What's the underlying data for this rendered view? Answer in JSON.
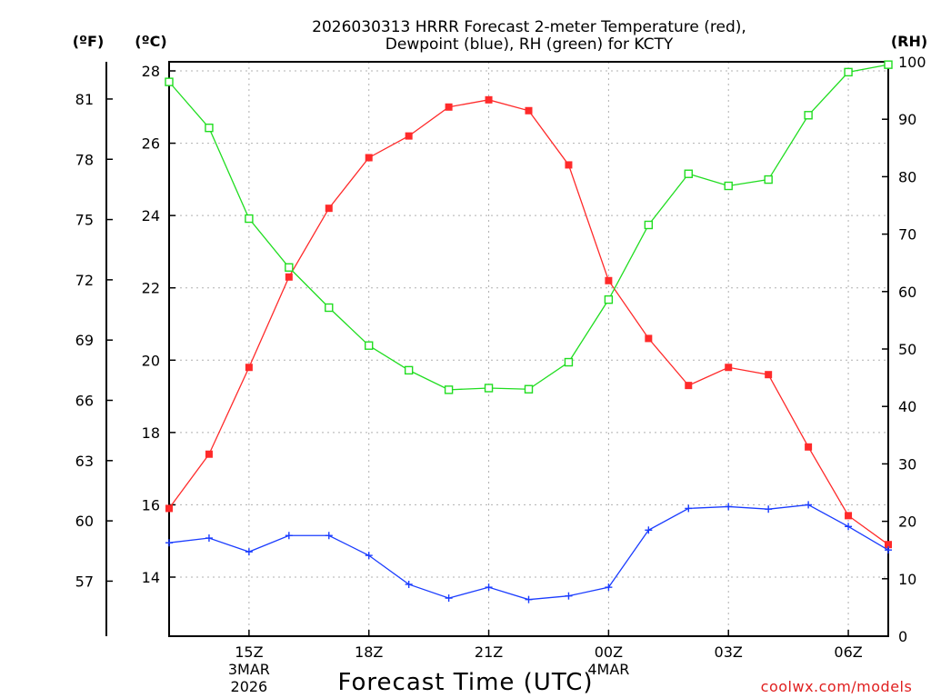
{
  "chart_data": {
    "type": "line",
    "title_line1": "2026030313 HRRR Forecast 2-meter Temperature (red),",
    "title_line2": "Dewpoint (blue), RH (green) for KCTY",
    "xlabel": "Forecast Time (UTC)",
    "credit": "coolwx.com/models",
    "units": {
      "f": "(ºF)",
      "c": "(ºC)",
      "rh": "(RH)"
    },
    "hours": [
      13,
      14,
      15,
      16,
      17,
      18,
      19,
      20,
      21,
      22,
      23,
      24,
      25,
      26,
      27,
      28,
      29,
      30,
      31
    ],
    "xlim": [
      13,
      31
    ],
    "x_ticks": [
      {
        "hour": 15,
        "label": "15Z",
        "sub1": "3MAR",
        "sub2": "2026"
      },
      {
        "hour": 18,
        "label": "18Z",
        "sub1": "",
        "sub2": ""
      },
      {
        "hour": 21,
        "label": "21Z",
        "sub1": "",
        "sub2": ""
      },
      {
        "hour": 24,
        "label": "00Z",
        "sub1": "4MAR",
        "sub2": ""
      },
      {
        "hour": 27,
        "label": "03Z",
        "sub1": "",
        "sub2": ""
      },
      {
        "hour": 30,
        "label": "06Z",
        "sub1": "",
        "sub2": ""
      }
    ],
    "celsius_axis": {
      "ylim": [
        12.4,
        28.3
      ],
      "ticks": [
        "14",
        "16",
        "18",
        "20",
        "22",
        "24",
        "26",
        "28"
      ]
    },
    "fahrenheit_axis": {
      "ticks": [
        "57",
        "60",
        "63",
        "66",
        "69",
        "72",
        "75",
        "78",
        "81"
      ]
    },
    "rh_axis": {
      "ylim": [
        0,
        100
      ],
      "ticks": [
        "0",
        "10",
        "20",
        "30",
        "40",
        "50",
        "60",
        "70",
        "80",
        "90",
        "100"
      ]
    },
    "series": [
      {
        "name": "2-meter Temperature",
        "unit": "C",
        "color": "#ff2a2a",
        "marker": "filled-square",
        "values": [
          15.9,
          17.4,
          19.8,
          22.3,
          24.2,
          25.6,
          26.2,
          27.0,
          27.2,
          26.9,
          25.4,
          22.2,
          20.6,
          19.3,
          19.8,
          19.6,
          17.6,
          15.7,
          14.9
        ]
      },
      {
        "name": "Dewpoint",
        "unit": "C",
        "color": "#1a3cff",
        "marker": "plus",
        "values": [
          14.95,
          15.08,
          14.7,
          15.15,
          15.15,
          14.6,
          13.8,
          13.42,
          13.72,
          13.38,
          13.48,
          13.72,
          15.3,
          15.9,
          15.95,
          15.88,
          16.0,
          15.4,
          14.75
        ]
      },
      {
        "name": "RH",
        "unit": "%",
        "color": "#20dd20",
        "marker": "open-square",
        "values": [
          96.5,
          88.5,
          72.7,
          64.2,
          57.2,
          50.6,
          46.3,
          42.9,
          43.2,
          43.0,
          47.7,
          58.6,
          71.6,
          80.5,
          78.4,
          79.5,
          90.7,
          98.2,
          99.5
        ]
      }
    ]
  }
}
